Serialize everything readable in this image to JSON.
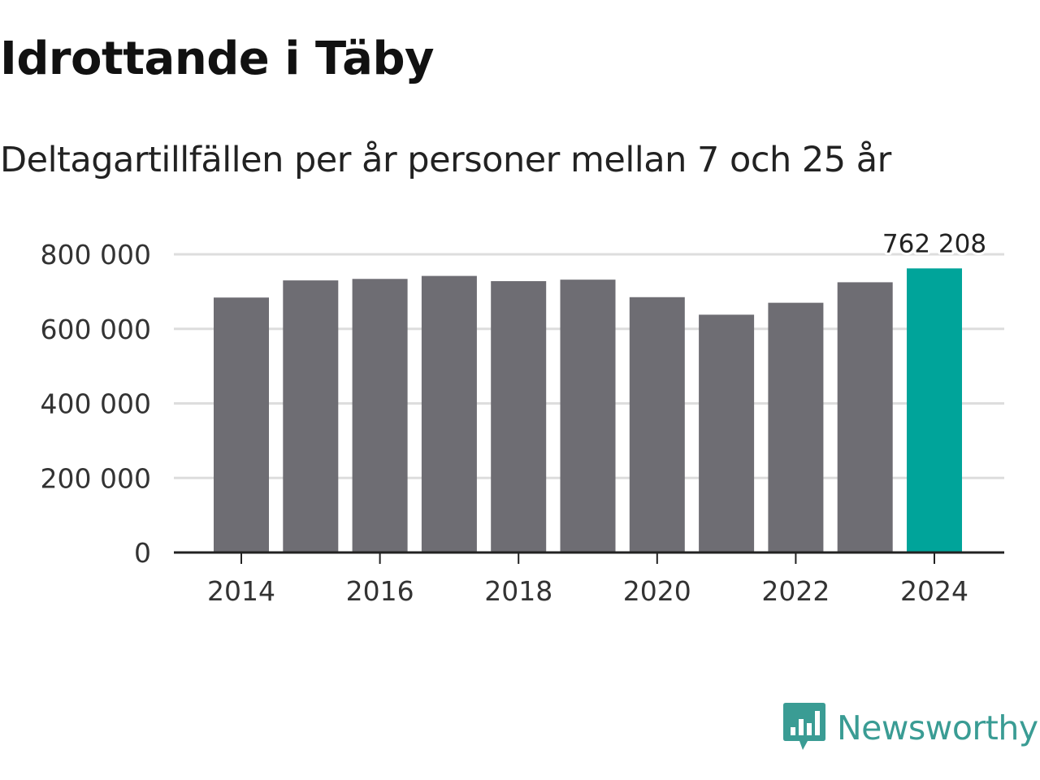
{
  "title": "Idrottande i Täby",
  "subtitle": "Deltagartillfällen per år personer mellan 7 och 25 år",
  "brand": {
    "name": "Newsworthy",
    "icon": "newsworthy-logo-icon",
    "color": "#3a9c94"
  },
  "colors": {
    "bar": "#6e6d73",
    "highlight": "#00a49a",
    "grid": "#dddddd",
    "axis": "#222222"
  },
  "chart_data": {
    "type": "bar",
    "title": "Idrottande i Täby",
    "subtitle": "Deltagartillfällen per år personer mellan 7 och 25 år",
    "xlabel": "",
    "ylabel": "",
    "categories": [
      "2014",
      "2015",
      "2016",
      "2017",
      "2018",
      "2019",
      "2020",
      "2021",
      "2022",
      "2023",
      "2024"
    ],
    "values": [
      684000,
      730000,
      734000,
      742000,
      728000,
      732000,
      685000,
      638000,
      670000,
      725000,
      762208
    ],
    "highlight_index": 10,
    "ylim": [
      0,
      800000
    ],
    "yticks": [
      0,
      200000,
      400000,
      600000,
      800000
    ],
    "ytick_labels": [
      "0",
      "200 000",
      "400 000",
      "600 000",
      "800 000"
    ],
    "xtick_labels": [
      "2014",
      "2016",
      "2018",
      "2020",
      "2022",
      "2024"
    ],
    "xtick_categories": [
      "2014",
      "2016",
      "2018",
      "2020",
      "2022",
      "2024"
    ],
    "data_labels": [
      {
        "category": "2024",
        "text": "762 208"
      }
    ],
    "grid": true,
    "legend": "none"
  }
}
